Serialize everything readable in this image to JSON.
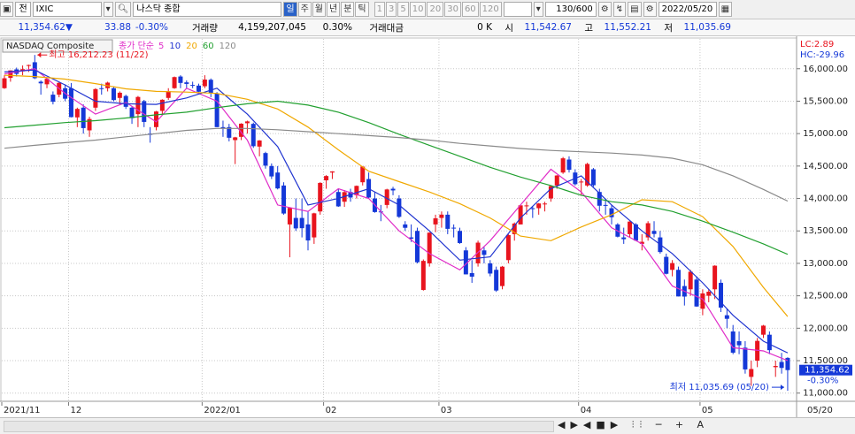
{
  "toolbar": {
    "market": "전",
    "code": "IXIC",
    "name": "나스닥 종합",
    "periods": [
      "일",
      "주",
      "월",
      "년",
      "분",
      "틱"
    ],
    "intervals": [
      "1",
      "3",
      "5",
      "10",
      "20",
      "30",
      "60",
      "120"
    ],
    "count": "130/600",
    "date": "2022/05/20"
  },
  "quote": {
    "price": "11,354.62▼",
    "change": "33.88",
    "change_pct": "-0.30%",
    "volume_label": "거래량",
    "volume": "4,159,207,045",
    "volume_pct": "0.30%",
    "amount_label": "거래대금",
    "amount": "0 K",
    "open_label": "시",
    "open": "11,542.67",
    "high_label": "고",
    "high": "11,552.21",
    "low_label": "저",
    "low": "11,035.69"
  },
  "chart_data": {
    "type": "candlestick",
    "title": "NASDAQ Composite",
    "legend_label": "종가 단순",
    "up_color": "#e8141e",
    "down_color": "#1438d8",
    "ylim": [
      10860,
      16460
    ],
    "yticks": [
      {
        "value": 11000,
        "label": "11,000.00"
      },
      {
        "value": 11500,
        "label": "11,500.00"
      },
      {
        "value": 12000,
        "label": "12,000.00"
      },
      {
        "value": 12500,
        "label": "12,500.00"
      },
      {
        "value": 13000,
        "label": "13,000.00"
      },
      {
        "value": 13500,
        "label": "13,500.00"
      },
      {
        "value": 14000,
        "label": "14,000.00"
      },
      {
        "value": 14500,
        "label": "14,500.00"
      },
      {
        "value": 15000,
        "label": "15,000.00"
      },
      {
        "value": 15500,
        "label": "15,500.00"
      },
      {
        "value": 16000,
        "label": "16,000.00"
      }
    ],
    "xticks": [
      {
        "value": 0,
        "label": "2021/11"
      },
      {
        "value": 11,
        "label": "12"
      },
      {
        "value": 33,
        "label": "2022/01"
      },
      {
        "value": 53,
        "label": "02"
      },
      {
        "value": 72,
        "label": "03"
      },
      {
        "value": 95,
        "label": "04"
      },
      {
        "value": 115,
        "label": "05"
      }
    ],
    "x_end_label": "05/20",
    "grid": true,
    "lc": "LC:2.89",
    "hc": "HC:-29.96",
    "last": {
      "value": 11354.62,
      "label": "11,354.62"
    },
    "last_change": "-0.30%",
    "annotations": [
      {
        "text": "최고 16,212.23 (11/22)",
        "index": 5,
        "value": 16212.23
      },
      {
        "text": "최저 11,035.69 (05/20)",
        "index": 129,
        "value": 11035.69
      }
    ],
    "ohlc": [
      [
        15700,
        15900,
        15690,
        15853
      ],
      [
        15860,
        15975,
        15800,
        15974
      ],
      [
        15990,
        16017,
        15880,
        15921
      ],
      [
        15960,
        16050,
        15900,
        15993
      ],
      [
        16050,
        16063,
        15950,
        16057
      ],
      [
        16100,
        16212.23,
        15840,
        15854
      ],
      [
        15800,
        15820,
        15600,
        15775
      ],
      [
        15760,
        15860,
        15700,
        15845
      ],
      [
        15600,
        15650,
        15450,
        15491
      ],
      [
        15600,
        15800,
        15560,
        15782
      ],
      [
        15700,
        15760,
        15500,
        15538
      ],
      [
        15700,
        15780,
        15250,
        15254
      ],
      [
        15250,
        15400,
        15100,
        15381
      ],
      [
        15400,
        15450,
        15000,
        15085
      ],
      [
        15050,
        15260,
        14950,
        15225
      ],
      [
        15400,
        15700,
        15350,
        15686
      ],
      [
        15700,
        15770,
        15600,
        15687
      ],
      [
        15700,
        15800,
        15650,
        15786
      ],
      [
        15700,
        15720,
        15500,
        15517
      ],
      [
        15550,
        15650,
        15450,
        15630
      ],
      [
        15580,
        15600,
        15380,
        15413
      ],
      [
        15400,
        15420,
        15150,
        15238
      ],
      [
        15300,
        15580,
        15100,
        15565
      ],
      [
        15500,
        15520,
        15100,
        15180
      ],
      [
        15000,
        15100,
        14860,
        14981
      ],
      [
        15100,
        15350,
        15050,
        15341
      ],
      [
        15350,
        15530,
        15300,
        15522
      ],
      [
        15550,
        15700,
        15520,
        15653
      ],
      [
        15700,
        15880,
        15690,
        15871
      ],
      [
        15880,
        15900,
        15700,
        15781
      ],
      [
        15790,
        15820,
        15700,
        15766
      ],
      [
        15750,
        15800,
        15700,
        15741
      ],
      [
        15740,
        15770,
        15640,
        15645
      ],
      [
        15730,
        15900,
        15700,
        15833
      ],
      [
        15830,
        15850,
        15560,
        15622
      ],
      [
        15620,
        15640,
        15100,
        15100
      ],
      [
        15100,
        15200,
        14950,
        15080
      ],
      [
        15100,
        15150,
        14880,
        14936
      ],
      [
        14900,
        14950,
        14530,
        14942
      ],
      [
        14950,
        15160,
        14900,
        15153
      ],
      [
        15160,
        15200,
        15000,
        15188
      ],
      [
        15150,
        15170,
        14780,
        14806
      ],
      [
        14800,
        14900,
        14650,
        14894
      ],
      [
        14700,
        14720,
        14460,
        14506
      ],
      [
        14500,
        14540,
        14300,
        14340
      ],
      [
        14400,
        14500,
        14140,
        14155
      ],
      [
        14200,
        14250,
        13750,
        13768
      ],
      [
        13600,
        13860,
        13094,
        13855
      ],
      [
        13700,
        14000,
        13500,
        13539
      ],
      [
        13700,
        14000,
        13400,
        13542
      ],
      [
        13600,
        13800,
        13200,
        13353
      ],
      [
        13400,
        13780,
        13300,
        13771
      ],
      [
        13800,
        14250,
        13750,
        14240
      ],
      [
        14280,
        14360,
        14150,
        14346
      ],
      [
        14400,
        14420,
        14300,
        14417
      ],
      [
        14100,
        14150,
        13870,
        13878
      ],
      [
        13950,
        14130,
        13870,
        14098
      ],
      [
        14100,
        14150,
        13950,
        14015
      ],
      [
        14050,
        14200,
        14000,
        14194
      ],
      [
        14250,
        14500,
        14200,
        14491
      ],
      [
        14300,
        14400,
        14000,
        14015
      ],
      [
        14000,
        14100,
        13780,
        13791
      ],
      [
        13800,
        13900,
        13650,
        13790
      ],
      [
        13900,
        14150,
        13850,
        14139
      ],
      [
        14150,
        14180,
        14050,
        14124
      ],
      [
        14000,
        14050,
        13700,
        13717
      ],
      [
        13600,
        13650,
        13500,
        13548
      ],
      [
        13400,
        13600,
        13330,
        13381
      ],
      [
        13500,
        13550,
        13000,
        13017
      ],
      [
        12590,
        13060,
        12580,
        13038
      ],
      [
        13000,
        13480,
        12950,
        13473
      ],
      [
        13600,
        13750,
        13480,
        13694
      ],
      [
        13700,
        13800,
        13550,
        13751
      ],
      [
        13750,
        13800,
        13450,
        13532
      ],
      [
        13550,
        13600,
        13400,
        13538
      ],
      [
        13500,
        13550,
        13300,
        13313
      ],
      [
        13200,
        13250,
        12830,
        12830
      ],
      [
        12850,
        13050,
        12700,
        12795
      ],
      [
        13000,
        13350,
        12950,
        13319
      ],
      [
        13200,
        13250,
        13000,
        13130
      ],
      [
        13000,
        13050,
        12800,
        12843
      ],
      [
        12900,
        12950,
        12560,
        12581
      ],
      [
        12650,
        12960,
        12600,
        12949
      ],
      [
        13050,
        13450,
        13000,
        13436
      ],
      [
        13450,
        13630,
        13350,
        13614
      ],
      [
        13600,
        13900,
        13600,
        13894
      ],
      [
        13880,
        13950,
        13750,
        13893
      ],
      [
        13850,
        13880,
        13700,
        13838
      ],
      [
        13850,
        13930,
        13750,
        13923
      ],
      [
        13920,
        13950,
        13800,
        13922
      ],
      [
        14000,
        14200,
        13950,
        14191
      ],
      [
        14200,
        14360,
        14150,
        14354
      ],
      [
        14400,
        14640,
        14380,
        14619
      ],
      [
        14600,
        14650,
        14400,
        14442
      ],
      [
        14400,
        14450,
        14200,
        14220
      ],
      [
        14250,
        14300,
        14050,
        14261
      ],
      [
        14200,
        14550,
        14180,
        14532
      ],
      [
        14450,
        14470,
        14180,
        14204
      ],
      [
        14100,
        14150,
        13800,
        13888
      ],
      [
        13900,
        14000,
        13750,
        13897
      ],
      [
        13850,
        13900,
        13600,
        13711
      ],
      [
        13600,
        13620,
        13400,
        13411
      ],
      [
        13400,
        13550,
        13300,
        13372
      ],
      [
        13450,
        13650,
        13400,
        13644
      ],
      [
        13600,
        13620,
        13350,
        13351
      ],
      [
        13300,
        13450,
        13200,
        13332
      ],
      [
        13400,
        13650,
        13350,
        13619
      ],
      [
        13500,
        13650,
        13400,
        13453
      ],
      [
        13400,
        13500,
        13150,
        13174
      ],
      [
        13100,
        13150,
        12830,
        12839
      ],
      [
        12900,
        13050,
        12800,
        13004
      ],
      [
        12900,
        12950,
        12490,
        12490
      ],
      [
        12650,
        12750,
        12350,
        12488
      ],
      [
        12600,
        12900,
        12500,
        12871
      ],
      [
        12750,
        12800,
        12330,
        12335
      ],
      [
        12300,
        12600,
        12200,
        12536
      ],
      [
        12500,
        12600,
        12400,
        12563
      ],
      [
        12600,
        12970,
        12450,
        12964
      ],
      [
        12700,
        12750,
        12250,
        12318
      ],
      [
        12200,
        12300,
        12000,
        12145
      ],
      [
        11950,
        12050,
        11600,
        11623
      ],
      [
        11800,
        11950,
        11600,
        11737
      ],
      [
        11700,
        11800,
        11300,
        11365
      ],
      [
        11250,
        11500,
        11110,
        11371
      ],
      [
        11500,
        11850,
        11400,
        11805
      ],
      [
        11900,
        12050,
        11850,
        12040
      ],
      [
        11900,
        11950,
        11600,
        11662
      ],
      [
        11400,
        11500,
        11250,
        11418
      ],
      [
        11480,
        11620,
        11300,
        11388
      ],
      [
        11542.67,
        11552.21,
        11035.69,
        11354.62
      ]
    ],
    "ma_x": [
      0,
      5,
      10,
      15,
      20,
      25,
      30,
      35,
      40,
      45,
      50,
      55,
      60,
      65,
      70,
      75,
      80,
      85,
      90,
      95,
      100,
      105,
      110,
      115,
      120,
      125,
      129
    ],
    "series": [
      {
        "name": "5",
        "color": "#e02cc8",
        "values": [
          15920,
          16000,
          15620,
          15300,
          15480,
          15180,
          15700,
          15500,
          14900,
          13900,
          13800,
          14150,
          14000,
          13500,
          13150,
          12900,
          13350,
          13900,
          14450,
          14100,
          13550,
          13300,
          12650,
          12450,
          11700,
          11650,
          11500
        ]
      },
      {
        "name": "10",
        "color": "#2034d0",
        "values": [
          15950,
          15980,
          15750,
          15500,
          15460,
          15450,
          15550,
          15700,
          15300,
          14800,
          13900,
          14000,
          14150,
          13900,
          13500,
          13050,
          13100,
          13700,
          14150,
          14350,
          13900,
          13500,
          13150,
          12700,
          12200,
          11800,
          11620
        ]
      },
      {
        "name": "20",
        "color": "#f0a800",
        "values": [
          15900,
          15880,
          15840,
          15770,
          15690,
          15650,
          15640,
          15620,
          15530,
          15380,
          15100,
          14750,
          14420,
          14260,
          14100,
          13920,
          13700,
          13420,
          13350,
          13560,
          13750,
          13980,
          13950,
          13720,
          13260,
          12630,
          12180
        ]
      },
      {
        "name": "60",
        "color": "#22a030",
        "values": [
          15090,
          15130,
          15170,
          15200,
          15240,
          15290,
          15330,
          15400,
          15460,
          15500,
          15440,
          15330,
          15170,
          14990,
          14820,
          14650,
          14480,
          14330,
          14200,
          14050,
          13950,
          13900,
          13800,
          13650,
          13480,
          13300,
          13140
        ]
      },
      {
        "name": "120",
        "color": "#8a8a8a",
        "values": [
          14775,
          14820,
          14860,
          14900,
          14950,
          15000,
          15050,
          15080,
          15080,
          15060,
          15030,
          15000,
          14970,
          14940,
          14900,
          14850,
          14810,
          14770,
          14740,
          14720,
          14700,
          14670,
          14620,
          14520,
          14350,
          14140,
          13960
        ]
      }
    ]
  }
}
